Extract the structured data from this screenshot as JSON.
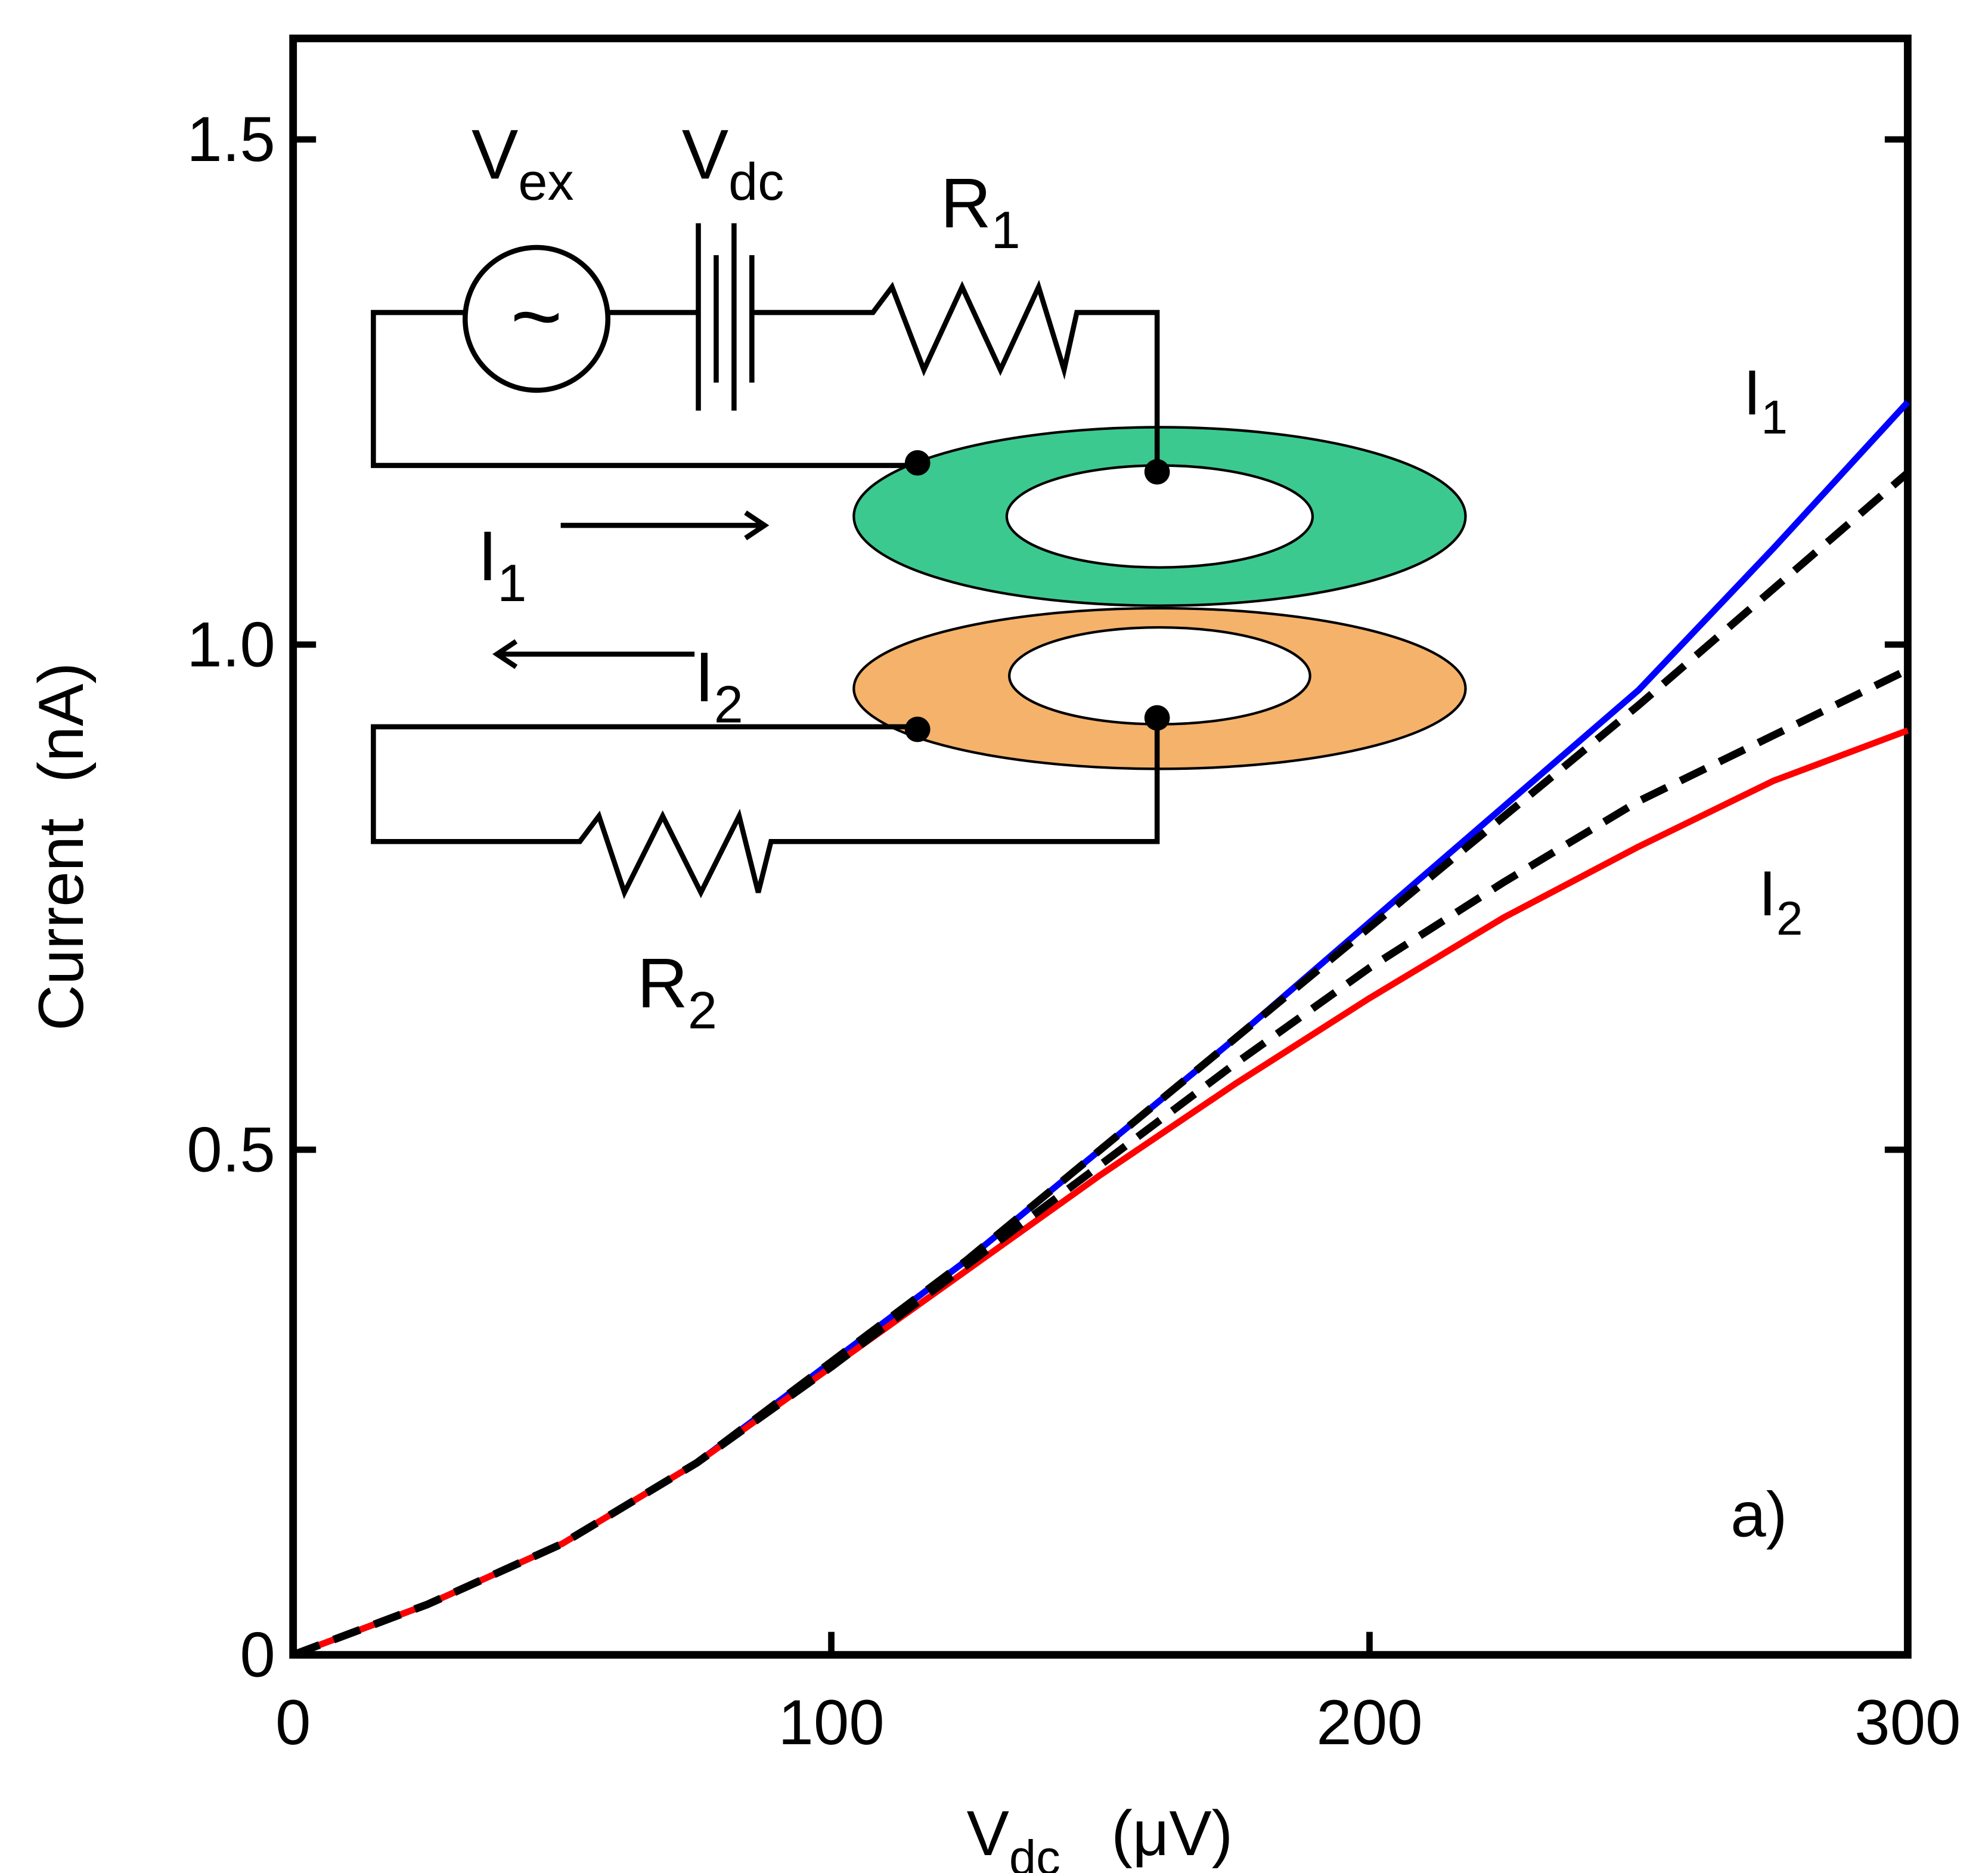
{
  "chart_data": {
    "type": "line",
    "x_label": {
      "main": "V",
      "sub": "dc",
      "unit": "(μV)"
    },
    "y_label": "Current  (nA)",
    "x": [
      0,
      25,
      50,
      75,
      100,
      125,
      150,
      175,
      200,
      225,
      250,
      275,
      300
    ],
    "series": [
      {
        "color": "#0000ff",
        "dashed": false,
        "values": [
          0,
          0.05,
          0.11,
          0.19,
          0.29,
          0.39,
          0.5,
          0.61,
          0.725,
          0.84,
          0.955,
          1.095,
          1.24
        ]
      },
      {
        "color": "#ff0000",
        "dashed": false,
        "values": [
          0,
          0.05,
          0.11,
          0.19,
          0.285,
          0.38,
          0.475,
          0.565,
          0.65,
          0.73,
          0.8,
          0.865,
          0.915
        ]
      },
      {
        "color": "#000000",
        "dashed": true,
        "values": [
          0,
          0.05,
          0.11,
          0.19,
          0.29,
          0.39,
          0.5,
          0.61,
          0.72,
          0.83,
          0.94,
          1.055,
          1.17
        ]
      },
      {
        "color": "#000000",
        "dashed": true,
        "values": [
          0,
          0.05,
          0.11,
          0.19,
          0.285,
          0.385,
          0.485,
          0.585,
          0.68,
          0.765,
          0.845,
          0.91,
          0.975
        ]
      }
    ],
    "xlim": [
      0,
      300
    ],
    "xticks": [
      0,
      100,
      200,
      300
    ],
    "ylim": [
      0,
      1.6
    ],
    "yticks": [
      0,
      0.5,
      {
        "value": 1,
        "label": "1.0"
      },
      1.5
    ],
    "grid": false,
    "annotations": [
      {
        "text": "I",
        "sub": "1"
      },
      {
        "text": "I",
        "sub": "2"
      },
      {
        "text": "a)"
      }
    ]
  },
  "inset": {
    "labels": [
      {
        "text": "V",
        "sub": "ex"
      },
      {
        "text": "V",
        "sub": "dc"
      },
      {
        "text": "R",
        "sub": "1"
      },
      {
        "text": "I",
        "sub": "1"
      },
      {
        "text": "I",
        "sub": "2"
      },
      {
        "text": "R",
        "sub": "2"
      },
      {
        "text": "~"
      }
    ]
  }
}
